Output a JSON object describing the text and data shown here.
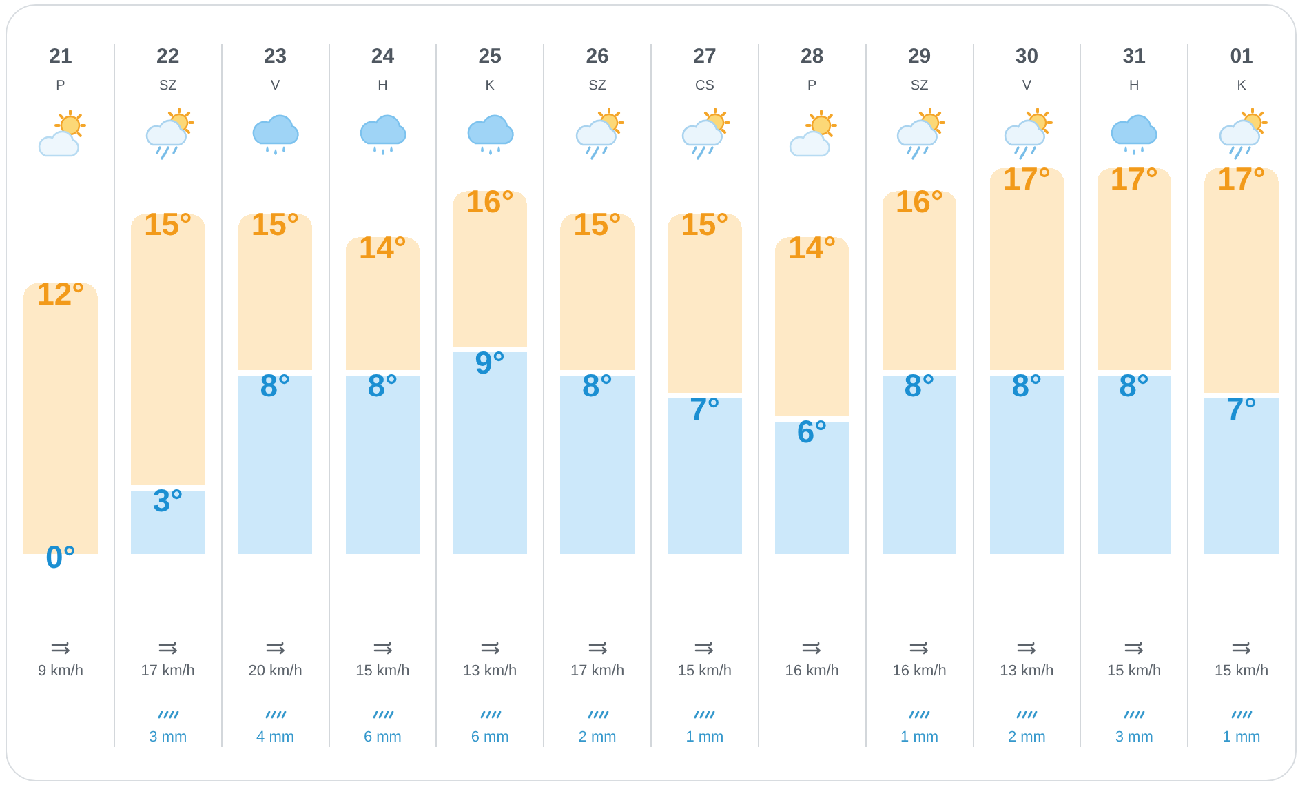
{
  "chart_data": [
    {
      "type": "bar",
      "stacked": true,
      "categories": [
        "21\nP",
        "22\nSZ",
        "23\nV",
        "24\nH",
        "25\nK",
        "26\nSZ",
        "27\nCS",
        "28\nP",
        "29\nSZ",
        "30\nV",
        "31\nH",
        "01\nK"
      ],
      "series": [
        {
          "color": "#cce8fa",
          "values": [
            0,
            3,
            8,
            8,
            9,
            8,
            7,
            6,
            8,
            8,
            8,
            7
          ],
          "value_labels": [
            null,
            "3°",
            "8°",
            "8°",
            "9°",
            "8°",
            "7°",
            "6°",
            "8°",
            "8°",
            "8°",
            "7°"
          ]
        },
        {
          "color": "#fee9c6",
          "values": [
            12,
            12,
            7,
            6,
            7,
            7,
            8,
            8,
            8,
            9,
            9,
            10
          ]
        }
      ],
      "totals": [
        "12°",
        "15°",
        "15°",
        "14°",
        "16°",
        "15°",
        "15°",
        "14°",
        "16°",
        "17°",
        "17°",
        "17°"
      ],
      "annotations": [
        {
          "text": "0°",
          "x": "21\nP",
          "y": 0
        }
      ],
      "grid": "x",
      "tick_labels": "x"
    },
    {
      "type": "other",
      "annotations": [
        "9 km/h",
        "17 km/h\n3 mm",
        "20 km/h\n4 mm",
        "15 km/h\n6 mm",
        "13 km/h\n6 mm",
        "17 km/h\n2 mm",
        "15 km/h\n1 mm",
        "16 km/h",
        "16 km/h\n1 mm",
        "13 km/h\n2 mm",
        "15 km/h\n3 mm",
        "15 km/h\n1 mm"
      ]
    }
  ]
}
